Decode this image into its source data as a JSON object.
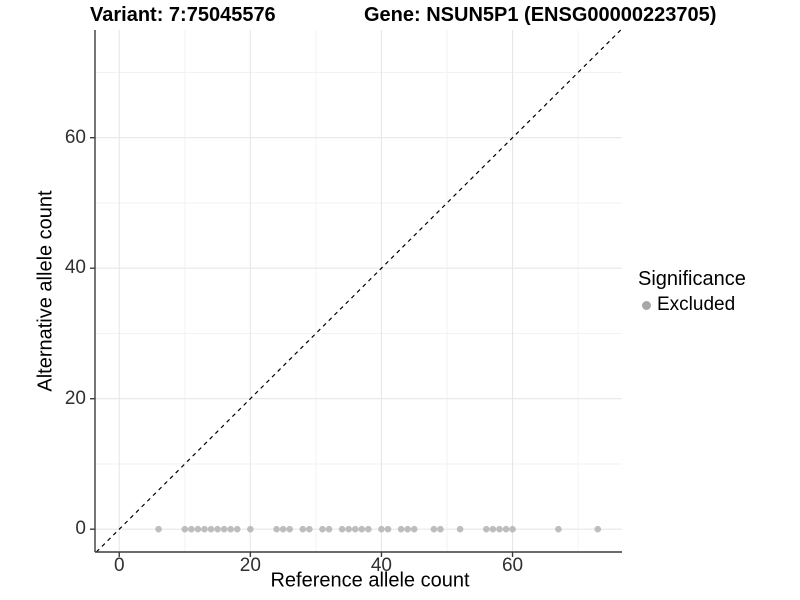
{
  "titles": {
    "variant": "Variant: 7:75045576",
    "gene": "Gene: NSUN5P1 (ENSG00000223705)"
  },
  "legend": {
    "title": "Significance",
    "items": [
      {
        "label": "Excluded",
        "color": "#a8a8a8"
      }
    ]
  },
  "colors": {
    "background": "#ffffff",
    "axis_line": "#3c3c3c",
    "tick_text": "#303030",
    "grid_major": "#e7e7e7",
    "grid_minor": "#f2f2f2",
    "point": "#b3b3b3",
    "reference_line": "#000000"
  },
  "chart_data": {
    "type": "scatter",
    "title": "Variant: 7:75045576 — Gene: NSUN5P1 (ENSG00000223705)",
    "xlabel": "Reference allele count",
    "ylabel": "Alternative allele count",
    "xlim": [
      -3.7,
      76.7
    ],
    "ylim": [
      -3.5,
      76.5
    ],
    "x_ticks": [
      0,
      20,
      40,
      60
    ],
    "y_ticks": [
      0,
      20,
      40,
      60
    ],
    "minor_ticks": [
      10,
      30,
      50,
      70
    ],
    "grid": true,
    "legend_position": "right",
    "reference_line": {
      "type": "identity",
      "style": "dashed",
      "color": "#000000"
    },
    "series": [
      {
        "name": "Excluded",
        "color": "#b3b3b3",
        "x": [
          6,
          10,
          11,
          12,
          13,
          14,
          15,
          16,
          17,
          18,
          20,
          24,
          25,
          26,
          28,
          29,
          31,
          32,
          34,
          35,
          36,
          37,
          38,
          40,
          41,
          43,
          44,
          45,
          48,
          49,
          52,
          56,
          57,
          58,
          59,
          60,
          67,
          73
        ],
        "y": [
          0,
          0,
          0,
          0,
          0,
          0,
          0,
          0,
          0,
          0,
          0,
          0,
          0,
          0,
          0,
          0,
          0,
          0,
          0,
          0,
          0,
          0,
          0,
          0,
          0,
          0,
          0,
          0,
          0,
          0,
          0,
          0,
          0,
          0,
          0,
          0,
          0,
          0
        ]
      }
    ]
  }
}
